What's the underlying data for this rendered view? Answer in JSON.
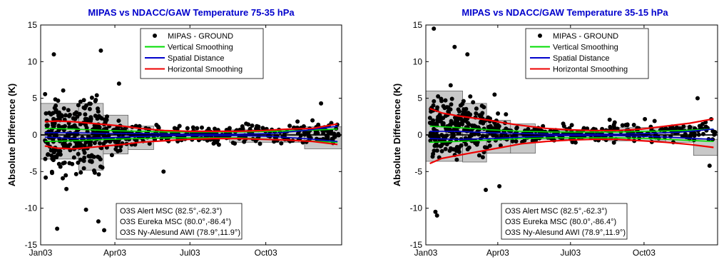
{
  "chart_data": [
    {
      "type": "scatter",
      "title": "MIPAS vs NDACC/GAW Temperature 75-35 hPa",
      "ylabel": "Absolute Difference (K)",
      "xlabel": "",
      "x_ticks": [
        "Jan03",
        "Apr03",
        "Jul03",
        "Oct03"
      ],
      "x_tick_days": [
        0,
        90,
        181,
        273
      ],
      "xlim": [
        0,
        365
      ],
      "ylim": [
        -15,
        15
      ],
      "y_ticks": [
        -15,
        -10,
        -5,
        0,
        5,
        10,
        15
      ],
      "grid": false,
      "legend_position": "top-center",
      "legend": [
        {
          "name": "MIPAS - GROUND",
          "marker": "dot",
          "color": "#000000"
        },
        {
          "name": "Vertical Smoothing",
          "marker": "line",
          "color": "#00dd00"
        },
        {
          "name": "Spatial Distance",
          "marker": "line",
          "color": "#0000cc"
        },
        {
          "name": "Horizontal Smoothing",
          "marker": "line",
          "color": "#ee0000"
        }
      ],
      "annotations": [
        "O3S Alert MSC (82.5°,-62.3°)",
        "O3S Eureka MSC (80.0°,-86.4°)",
        "O3S Ny-Alesund AWI (78.9°,11.9°)"
      ],
      "boxes": [
        {
          "x_start": 0,
          "x_end": 46,
          "bottom": -3.3,
          "top": 4.3
        },
        {
          "x_start": 46,
          "x_end": 76,
          "bottom": -4.8,
          "top": 4.3
        },
        {
          "x_start": 76,
          "x_end": 106,
          "bottom": -2.6,
          "top": 2.7
        },
        {
          "x_start": 106,
          "x_end": 137,
          "bottom": -2.0,
          "top": 1.2
        },
        {
          "x_start": 137,
          "x_end": 229,
          "bottom": -0.5,
          "top": 0.5
        },
        {
          "x_start": 229,
          "x_end": 320,
          "bottom": -1.0,
          "top": 0.7
        },
        {
          "x_start": 320,
          "x_end": 365,
          "bottom": -1.9,
          "top": 1.1
        }
      ],
      "series": [
        {
          "name": "Vertical Smoothing",
          "color": "#00dd00",
          "upper": {
            "x": [
              5,
              40,
              80,
              120,
              160,
              200,
              240,
              280,
              320,
              360
            ],
            "y": [
              0.9,
              0.8,
              0.6,
              0.5,
              0.4,
              0.4,
              0.4,
              0.5,
              0.6,
              0.8
            ]
          },
          "lower": {
            "x": [
              5,
              40,
              80,
              120,
              160,
              200,
              240,
              280,
              320,
              360
            ],
            "y": [
              -0.9,
              -0.8,
              -0.6,
              -0.5,
              -0.4,
              -0.4,
              -0.4,
              -0.6,
              -0.8,
              -1.0
            ]
          }
        },
        {
          "name": "Spatial Distance",
          "color": "#0000cc",
          "upper": {
            "x": [
              5,
              40,
              80,
              120,
              160,
              200,
              240,
              280,
              320,
              360
            ],
            "y": [
              0.3,
              0.3,
              0.2,
              0.2,
              0.1,
              0.1,
              0.1,
              0.2,
              0.6,
              1.2
            ]
          },
          "lower": {
            "x": [
              5,
              40,
              80,
              120,
              160,
              200,
              240,
              280,
              320,
              360
            ],
            "y": [
              -0.3,
              -0.5,
              -0.4,
              -0.2,
              -0.1,
              -0.1,
              -0.1,
              -0.2,
              -0.5,
              -0.9
            ]
          }
        },
        {
          "name": "Horizontal Smoothing",
          "color": "#ee0000",
          "upper": {
            "x": [
              5,
              20,
              40,
              60,
              80,
              100,
              120,
              150,
              180,
              210,
              240,
              270,
              300,
              330,
              360
            ],
            "y": [
              1.8,
              1.9,
              1.8,
              1.6,
              1.4,
              1.2,
              0.9,
              0.6,
              0.5,
              0.5,
              0.5,
              0.6,
              0.8,
              0.9,
              1.5
            ]
          },
          "lower": {
            "x": [
              5,
              20,
              40,
              60,
              80,
              100,
              120,
              150,
              180,
              210,
              240,
              270,
              300,
              330,
              360
            ],
            "y": [
              -1.5,
              -1.8,
              -1.9,
              -1.7,
              -1.5,
              -1.3,
              -1.0,
              -0.8,
              -0.6,
              -0.5,
              -0.5,
              -0.6,
              -0.7,
              -0.9,
              -1.3
            ]
          }
        }
      ],
      "scatter_clusters": [
        {
          "x_range": [
            5,
            75
          ],
          "y_range": [
            -11,
            11
          ],
          "count": 260
        },
        {
          "x_range": [
            76,
            105
          ],
          "y_range": [
            -5,
            5
          ],
          "count": 60
        },
        {
          "x_range": [
            106,
            229
          ],
          "y_range": [
            -2.5,
            2.5
          ],
          "count": 140
        },
        {
          "x_range": [
            229,
            362
          ],
          "y_range": [
            -3,
            3.5
          ],
          "count": 130
        }
      ],
      "outliers": [
        {
          "x": 20,
          "y": -12.8
        },
        {
          "x": 55,
          "y": -10.2
        },
        {
          "x": 70,
          "y": -11.8
        },
        {
          "x": 77,
          "y": -13.0
        },
        {
          "x": 73,
          "y": 11.5
        },
        {
          "x": 16,
          "y": 11.0
        },
        {
          "x": 95,
          "y": 7.0
        },
        {
          "x": 149,
          "y": -5.0
        },
        {
          "x": 340,
          "y": 4.3
        }
      ]
    },
    {
      "type": "scatter",
      "title": "MIPAS vs NDACC/GAW Temperature 35-15 hPa",
      "ylabel": "Absolute Difference (K)",
      "xlabel": "",
      "x_ticks": [
        "Jan03",
        "Apr03",
        "Jul03",
        "Oct03"
      ],
      "x_tick_days": [
        0,
        90,
        181,
        273
      ],
      "xlim": [
        0,
        365
      ],
      "ylim": [
        -15,
        15
      ],
      "y_ticks": [
        -15,
        -10,
        -5,
        0,
        5,
        10,
        15
      ],
      "grid": false,
      "legend_position": "top-center",
      "legend": [
        {
          "name": "MIPAS - GROUND",
          "marker": "dot",
          "color": "#000000"
        },
        {
          "name": "Vertical Smoothing",
          "marker": "line",
          "color": "#00dd00"
        },
        {
          "name": "Spatial Distance",
          "marker": "line",
          "color": "#0000cc"
        },
        {
          "name": "Horizontal Smoothing",
          "marker": "line",
          "color": "#ee0000"
        }
      ],
      "annotations": [
        "O3S Alert MSC (82.5°,-62.3°)",
        "O3S Eureka MSC (80.0°,-86.4°)",
        "O3S Ny-Alesund AWI (78.9°,11.9°)"
      ],
      "boxes": [
        {
          "x_start": 0,
          "x_end": 46,
          "bottom": -3.6,
          "top": 6.0
        },
        {
          "x_start": 46,
          "x_end": 76,
          "bottom": -3.7,
          "top": 4.3
        },
        {
          "x_start": 76,
          "x_end": 106,
          "bottom": -2.5,
          "top": 2.0
        },
        {
          "x_start": 106,
          "x_end": 137,
          "bottom": -2.5,
          "top": 1.5
        },
        {
          "x_start": 137,
          "x_end": 229,
          "bottom": -0.6,
          "top": 0.6
        },
        {
          "x_start": 229,
          "x_end": 300,
          "bottom": -0.8,
          "top": 1.0
        },
        {
          "x_start": 300,
          "x_end": 335,
          "bottom": -1.0,
          "top": 1.2
        },
        {
          "x_start": 335,
          "x_end": 365,
          "bottom": -2.8,
          "top": -0.6
        }
      ],
      "series": [
        {
          "name": "Vertical Smoothing",
          "color": "#00dd00",
          "upper": {
            "x": [
              5,
              40,
              80,
              120,
              160,
              200,
              240,
              280,
              320,
              360
            ],
            "y": [
              1.2,
              1.0,
              0.7,
              0.5,
              0.4,
              0.4,
              0.4,
              0.5,
              0.6,
              0.8
            ]
          },
          "lower": {
            "x": [
              5,
              40,
              80,
              120,
              160,
              200,
              240,
              280,
              320,
              360
            ],
            "y": [
              -1.0,
              -0.9,
              -0.7,
              -0.5,
              -0.4,
              -0.4,
              -0.4,
              -0.5,
              -0.7,
              -0.9
            ]
          }
        },
        {
          "name": "Spatial Distance",
          "color": "#0000cc",
          "upper": {
            "x": [
              5,
              40,
              80,
              120,
              160,
              200,
              240,
              280,
              320,
              360
            ],
            "y": [
              0.5,
              0.5,
              0.3,
              0.2,
              0.1,
              0.1,
              0.1,
              0.2,
              0.4,
              0.8
            ]
          },
          "lower": {
            "x": [
              5,
              40,
              80,
              120,
              160,
              200,
              240,
              280,
              320,
              360
            ],
            "y": [
              -0.5,
              -0.6,
              -0.5,
              -0.3,
              -0.1,
              -0.1,
              -0.1,
              -0.2,
              -0.4,
              -0.6
            ]
          }
        },
        {
          "name": "Horizontal Smoothing",
          "color": "#ee0000",
          "upper": {
            "x": [
              5,
              20,
              40,
              60,
              80,
              100,
              120,
              150,
              180,
              210,
              240,
              270,
              300,
              330,
              360
            ],
            "y": [
              3.6,
              3.0,
              2.6,
              2.3,
              2.0,
              1.6,
              1.3,
              0.9,
              0.7,
              0.6,
              0.6,
              0.8,
              1.2,
              1.6,
              2.2
            ]
          },
          "lower": {
            "x": [
              5,
              20,
              40,
              60,
              80,
              100,
              120,
              150,
              180,
              210,
              240,
              270,
              300,
              330,
              360
            ],
            "y": [
              -3.9,
              -3.2,
              -2.8,
              -2.4,
              -2.0,
              -1.6,
              -1.2,
              -0.9,
              -0.7,
              -0.6,
              -0.6,
              -0.8,
              -1.0,
              -1.3,
              -1.7
            ]
          }
        }
      ],
      "scatter_clusters": [
        {
          "x_range": [
            5,
            75
          ],
          "y_range": [
            -8,
            10
          ],
          "count": 230
        },
        {
          "x_range": [
            76,
            105
          ],
          "y_range": [
            -4,
            5
          ],
          "count": 60
        },
        {
          "x_range": [
            106,
            229
          ],
          "y_range": [
            -2.5,
            2.5
          ],
          "count": 130
        },
        {
          "x_range": [
            229,
            362
          ],
          "y_range": [
            -2.5,
            3.5
          ],
          "count": 120
        }
      ],
      "outliers": [
        {
          "x": 10,
          "y": 14.5
        },
        {
          "x": 12,
          "y": -10.5
        },
        {
          "x": 14,
          "y": -11.0
        },
        {
          "x": 36,
          "y": 12.0
        },
        {
          "x": 52,
          "y": 11.0
        },
        {
          "x": 75,
          "y": -7.5
        },
        {
          "x": 92,
          "y": -7.0
        },
        {
          "x": 86,
          "y": 5.5
        },
        {
          "x": 340,
          "y": 5.0
        },
        {
          "x": 355,
          "y": -4.2
        }
      ]
    }
  ]
}
